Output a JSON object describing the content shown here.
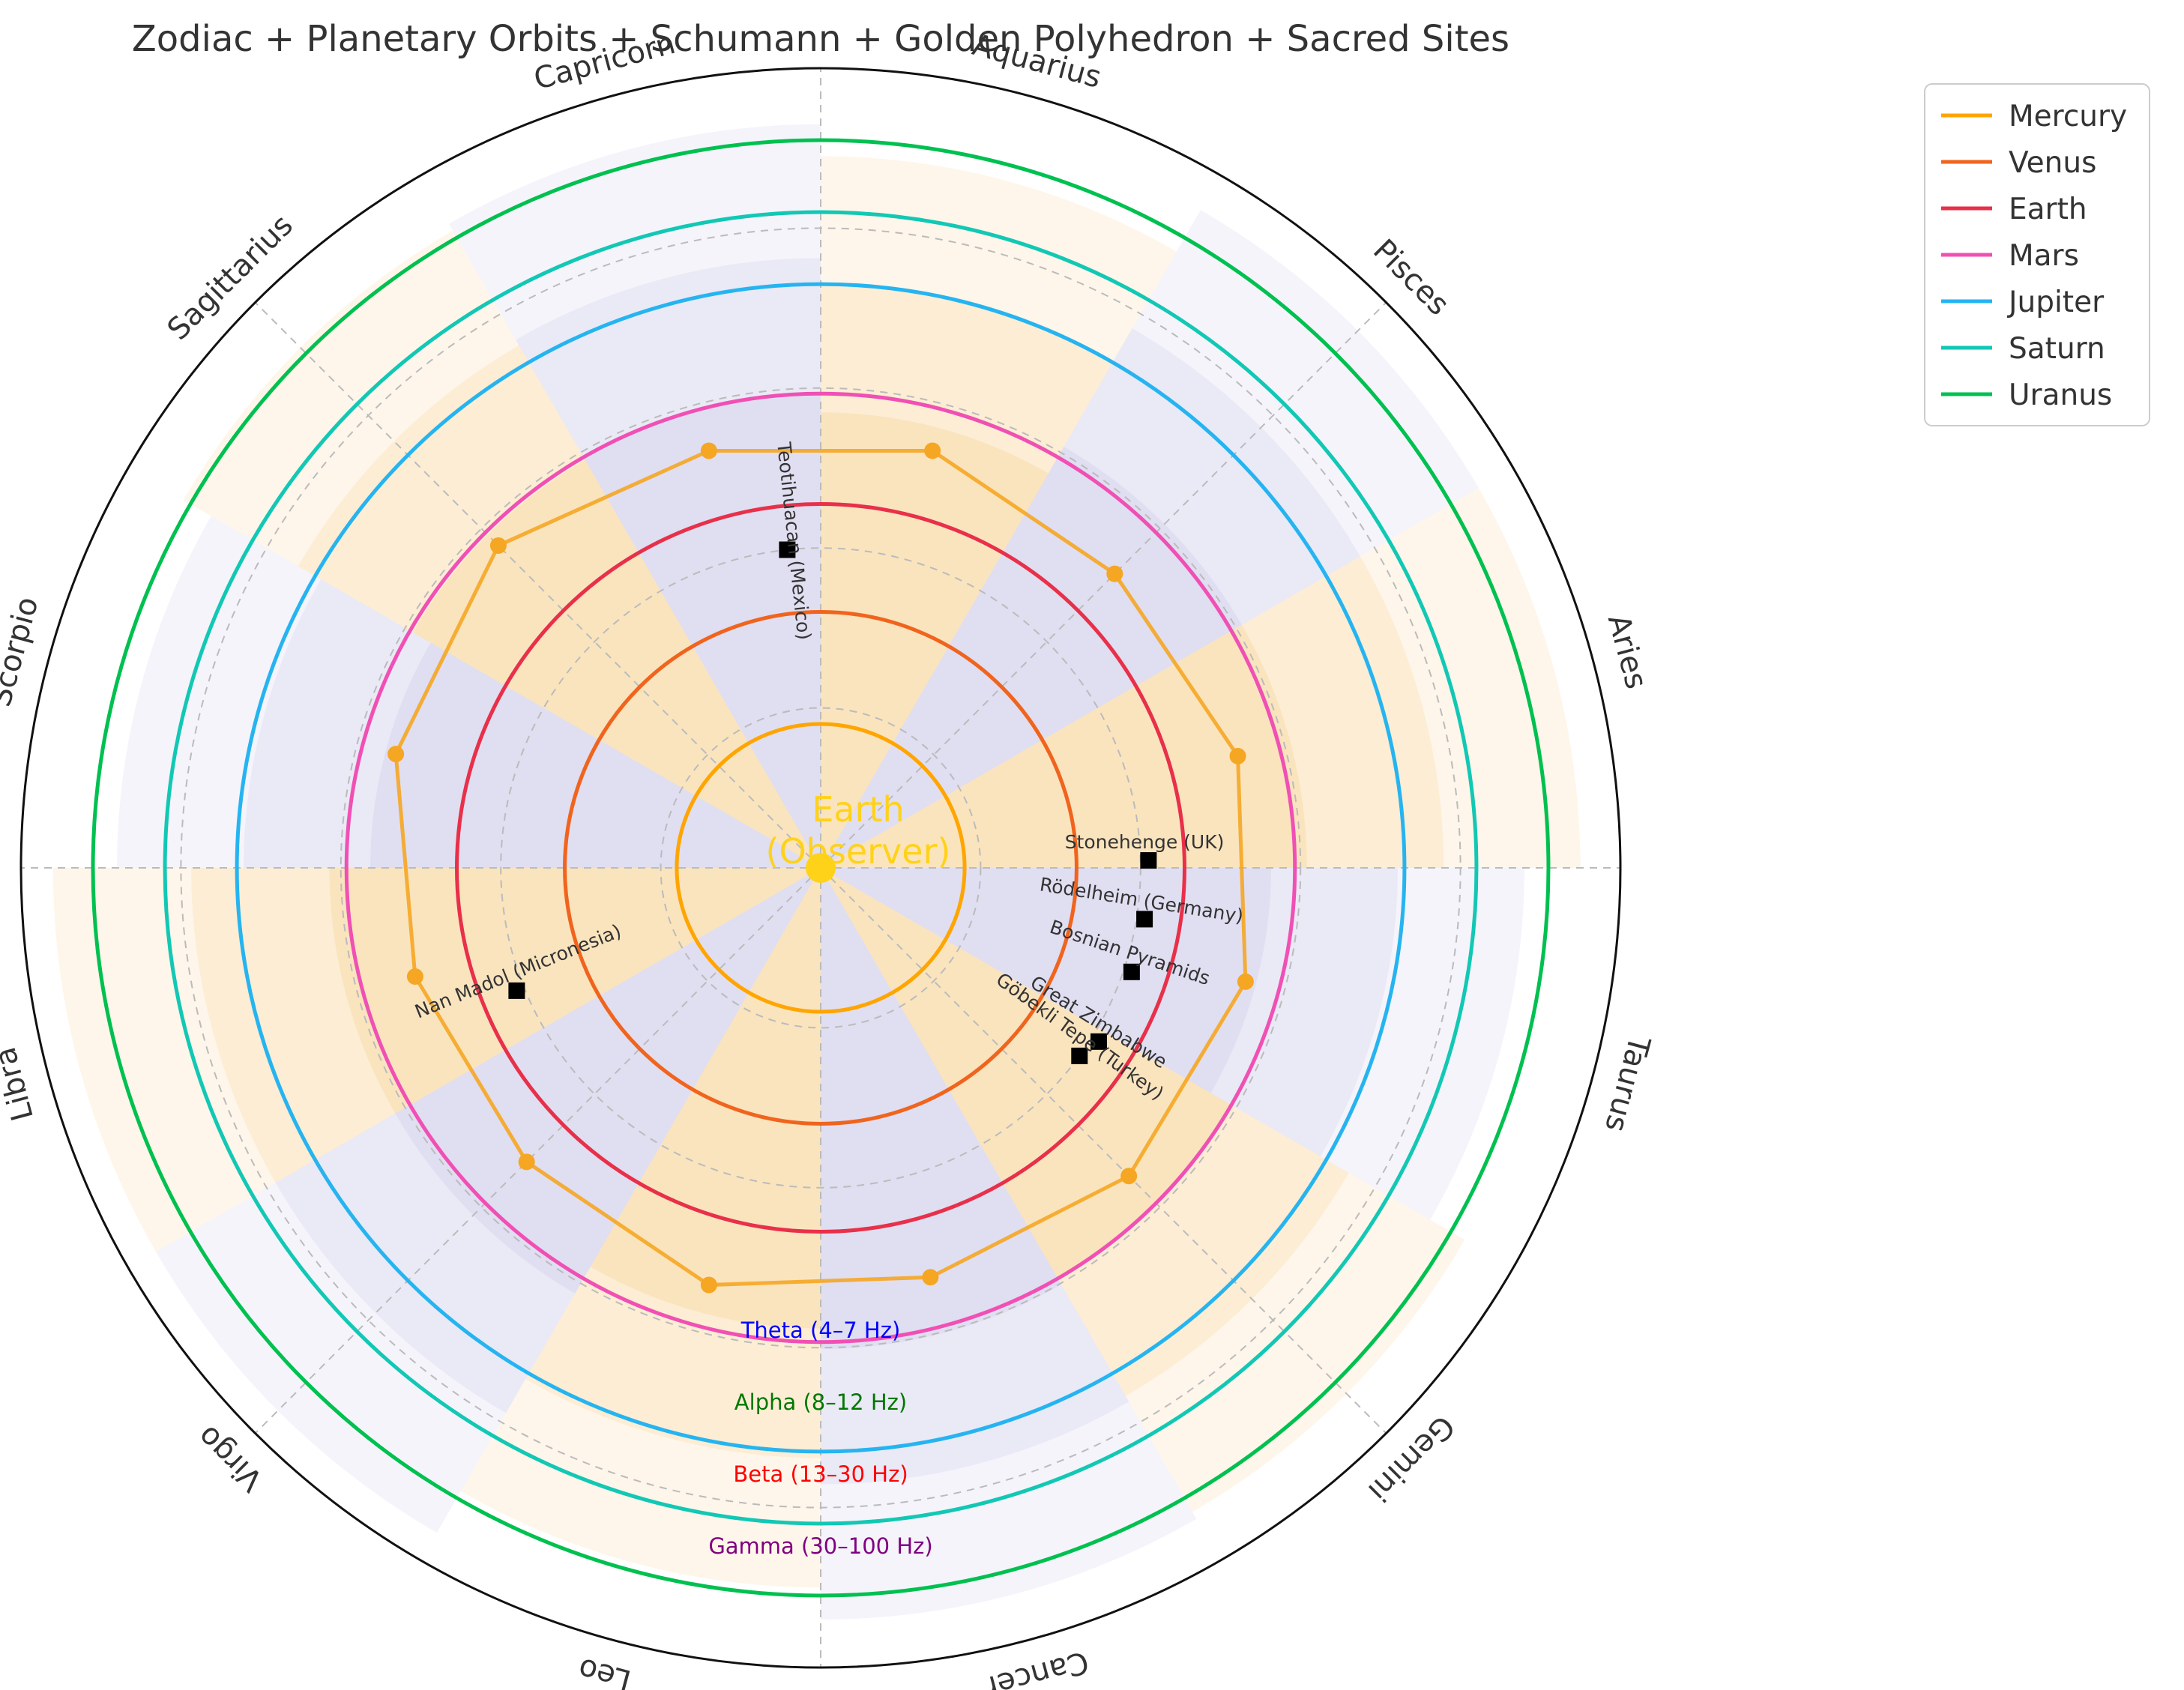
{
  "chart_data": {
    "type": "polar",
    "title": "Zodiac + Planetary Orbits + Schumann + Golden Polyhedron + Sacred Sites",
    "zodiac": {
      "signs": [
        "Aries",
        "Taurus",
        "Gemini",
        "Cancer",
        "Leo",
        "Virgo",
        "Libra",
        "Scorpio",
        "Sagittarius",
        "Capricorn",
        "Aquarius",
        "Pisces"
      ],
      "start_deg": 15,
      "direction": "clockwise"
    },
    "r_max": 1.0,
    "grid": true,
    "orbits": [
      {
        "name": "Mercury",
        "r": 0.18,
        "color": "#FFA500"
      },
      {
        "name": "Venus",
        "r": 0.32,
        "color": "#F0641E"
      },
      {
        "name": "Earth",
        "r": 0.455,
        "color": "#E8304A"
      },
      {
        "name": "Mars",
        "r": 0.593,
        "color": "#F050B4"
      },
      {
        "name": "Jupiter",
        "r": 0.73,
        "color": "#26B4F0"
      },
      {
        "name": "Saturn",
        "r": 0.82,
        "color": "#12C8B4"
      },
      {
        "name": "Uranus",
        "r": 0.91,
        "color": "#00C050"
      }
    ],
    "polyhedron": {
      "color": "#F5A623",
      "points": [
        {
          "theta": 15,
          "r": 0.54
        },
        {
          "theta": 45,
          "r": 0.52
        },
        {
          "theta": 75,
          "r": 0.54
        },
        {
          "theta": 105,
          "r": 0.54
        },
        {
          "theta": 135,
          "r": 0.57
        },
        {
          "theta": 165,
          "r": 0.55
        },
        {
          "theta": 195,
          "r": 0.525
        },
        {
          "theta": 225,
          "r": 0.52
        },
        {
          "theta": 255,
          "r": 0.54
        },
        {
          "theta": 285,
          "r": 0.53
        },
        {
          "theta": 315,
          "r": 0.545
        },
        {
          "theta": 345,
          "r": 0.55
        }
      ]
    },
    "sacred_sites": [
      {
        "name": "Stonehenge (UK)",
        "theta": 1.3,
        "r": 0.41,
        "rotation": 0
      },
      {
        "name": "Rödelheim (Germany)",
        "theta": -9,
        "r": 0.41,
        "rotation": -9
      },
      {
        "name": "Bosnian Pyramids",
        "theta": -18.5,
        "r": 0.41,
        "rotation": -18.5
      },
      {
        "name": "Great Zimbabwe",
        "theta": -32,
        "r": 0.41,
        "rotation": -32
      },
      {
        "name": "Göbekli Tepe (Turkey)",
        "theta": -36,
        "r": 0.4,
        "rotation": -36
      },
      {
        "name": "Teotihuacan (Mexico)",
        "theta": 96,
        "r": 0.4,
        "rotation": -84
      },
      {
        "name": "Nan Madol (Micronesia)",
        "theta": 202,
        "r": 0.41,
        "rotation": 22
      }
    ],
    "brainwave_bands": [
      {
        "label": "Theta (4–7 Hz)",
        "color": "#0000FF",
        "r": 0.58
      },
      {
        "label": "Alpha (8–12 Hz)",
        "color": "#007800",
        "r": 0.67
      },
      {
        "label": "Beta (13–30 Hz)",
        "color": "#FF0000",
        "r": 0.76
      },
      {
        "label": "Gamma (30–100 Hz)",
        "color": "#800080",
        "r": 0.85
      }
    ],
    "center_label": {
      "line1": "Earth",
      "line2": "(Observer)"
    },
    "legend": {
      "position": "upper right, outside plot"
    }
  }
}
